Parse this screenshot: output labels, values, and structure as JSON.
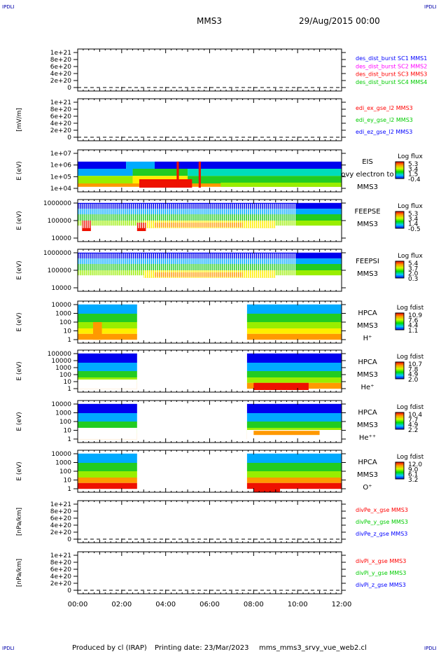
{
  "header": {
    "corner_label": "IPDLI",
    "spacecraft": "MMS3",
    "date": "29/Aug/2015 00:00"
  },
  "footer": {
    "produced_by": "Produced by cl (IRAP)",
    "printing_date": "Printing date: 23/Mar/2023",
    "script_name": "mms_mms3_srvy_vue_web2.cl"
  },
  "chart_data": {
    "type": "multi-panel time series and spectrograms",
    "time_axis": {
      "ticks": [
        "00:00",
        "02:00",
        "04:00",
        "06:00",
        "08:00",
        "10:00",
        "12:00"
      ],
      "range_hours": [
        0,
        12
      ]
    },
    "line_panels": [
      {
        "id": "des",
        "ylabel": "",
        "yticks": [
          "1e+21",
          "8e+20",
          "6e+20",
          "4e+20",
          "2e+20",
          "0"
        ],
        "legend": [
          {
            "text": "des_dist_burst SC1 MMS1",
            "color": "#0000ff"
          },
          {
            "text": "des_dist_burst SC2 MMS2",
            "color": "#ff00ff"
          },
          {
            "text": "des_dist_burst SC3 MMS3",
            "color": "#ff0000"
          },
          {
            "text": "des_dist_burst SC4 MMS4",
            "color": "#00cc00"
          }
        ]
      },
      {
        "id": "edi",
        "ylabel": "[mV/m]",
        "yticks": [
          "1e+21",
          "8e+20",
          "6e+20",
          "4e+20",
          "2e+20",
          "0"
        ],
        "legend": [
          {
            "text": "edi_ex_gse_l2 MMS3",
            "color": "#ff0000"
          },
          {
            "text": "edi_ey_gse_l2 MMS3",
            "color": "#00cc00"
          },
          {
            "text": "edi_ez_gse_l2 MMS3",
            "color": "#0000ff"
          }
        ]
      },
      {
        "id": "divpe",
        "ylabel": "[nPa/km]",
        "yticks": [
          "1e+21",
          "8e+20",
          "6e+20",
          "4e+20",
          "2e+20",
          "0"
        ],
        "legend": [
          {
            "text": "divPe_x_gse MMS3",
            "color": "#ff0000"
          },
          {
            "text": "divPe_y_gse MMS3",
            "color": "#00cc00"
          },
          {
            "text": "divPe_z_gse MMS3",
            "color": "#0000ff"
          }
        ]
      },
      {
        "id": "divpi",
        "ylabel": "[nPa/km]",
        "yticks": [
          "1e+21",
          "8e+20",
          "6e+20",
          "4e+20",
          "2e+20",
          "0"
        ],
        "legend": [
          {
            "text": "divPi_x_gse MMS3",
            "color": "#ff0000"
          },
          {
            "text": "divPi_y_gse MMS3",
            "color": "#00cc00"
          },
          {
            "text": "divPi_z_gse MMS3",
            "color": "#0000ff"
          }
        ]
      }
    ],
    "spectrogram_panels": [
      {
        "id": "eis",
        "ylabel": "E (eV)",
        "yticks": [
          "1e+07",
          "1e+06",
          "1e+05",
          "1e+04"
        ],
        "instrument": [
          "EIS",
          "ovy electron to",
          "MMS3"
        ],
        "colorbar_title": "Log flux",
        "colorbar_ticks": [
          "5.3",
          "3.4",
          "1.5",
          "-0.4"
        ]
      },
      {
        "id": "feepse",
        "ylabel": "E (eV)",
        "yticks": [
          "1000000",
          "100000",
          "10000"
        ],
        "instrument": [
          "FEEPSE",
          "MMS3"
        ],
        "colorbar_title": "Log flux",
        "colorbar_ticks": [
          "5.3",
          "3.4",
          "1.4",
          "-0.5"
        ]
      },
      {
        "id": "feepsi",
        "ylabel": "E (eV)",
        "yticks": [
          "1000000",
          "100000",
          "10000"
        ],
        "instrument": [
          "FEEPSI",
          "MMS3"
        ],
        "colorbar_title": "Log flux",
        "colorbar_ticks": [
          "5.4",
          "3.7",
          "2.0",
          "0.3"
        ]
      },
      {
        "id": "hpca_h",
        "ylabel": "E (eV)",
        "yticks": [
          "10000",
          "1000",
          "100",
          "10",
          "1"
        ],
        "instrument": [
          "HPCA",
          "MMS3",
          "H⁺"
        ],
        "colorbar_title": "Log fdist",
        "colorbar_ticks": [
          "10.9",
          "7.6",
          "4.4",
          "1.1"
        ]
      },
      {
        "id": "hpca_he",
        "ylabel": "E (eV)",
        "yticks": [
          "100000",
          "10000",
          "1000",
          "100",
          "10",
          "1"
        ],
        "instrument": [
          "HPCA",
          "MMS3",
          "He⁺"
        ],
        "colorbar_title": "Log fdist",
        "colorbar_ticks": [
          "10.7",
          "7.8",
          "4.9",
          "2.0"
        ]
      },
      {
        "id": "hpca_hepp",
        "ylabel": "E (eV)",
        "yticks": [
          "10000",
          "1000",
          "100",
          "10",
          "1"
        ],
        "instrument": [
          "HPCA",
          "MMS3",
          "He⁺⁺"
        ],
        "colorbar_title": "Log fdist",
        "colorbar_ticks": [
          "10.4",
          "7.7",
          "4.9",
          "2.2"
        ]
      },
      {
        "id": "hpca_o",
        "ylabel": "E (eV)",
        "yticks": [
          "10000",
          "1000",
          "100",
          "10",
          "1"
        ],
        "instrument": [
          "HPCA",
          "MMS3",
          "O⁺"
        ],
        "colorbar_title": "Log fdist",
        "colorbar_ticks": [
          "12.0",
          "9.0",
          "6.1",
          "3.2"
        ]
      }
    ]
  }
}
